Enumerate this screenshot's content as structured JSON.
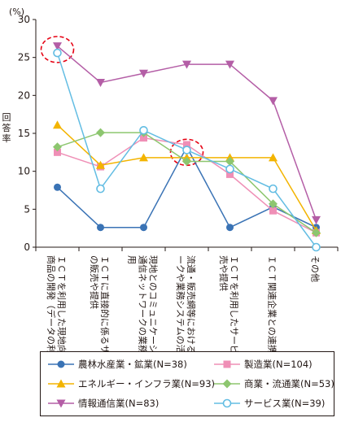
{
  "chart_data": {
    "type": "line",
    "unit": "(%)",
    "ylabel": "回答率",
    "ylim": [
      0,
      30
    ],
    "yticks": [
      0,
      5,
      10,
      15,
      20,
      25,
      30
    ],
    "categories": [
      "ＩＣＴを利用した現地向けサービス・商品の開発（データの利活用等）",
      "ＩＣＴに直接的に係るサービス・商品の販売や提供",
      "現地とのコミュニケーションにおける通信ネットワークの業務システムの活用",
      "流通・販売網等における通信ネットワークや業務システムの活用",
      "ＩＣＴを利用したサービス・商品の販売や提供",
      "ＩＣＴ関連企業との連携・協業",
      "その他"
    ],
    "series": [
      {
        "name": "農林水産業・鉱業(N=38)",
        "color": "#3a73b5",
        "marker": "circle",
        "values": [
          7.9,
          2.6,
          2.6,
          13.2,
          2.6,
          5.3,
          2.6
        ]
      },
      {
        "name": "製造業(N=104)",
        "color": "#ef8fb6",
        "marker": "square",
        "values": [
          12.5,
          10.6,
          14.4,
          13.5,
          9.6,
          4.8,
          1.9
        ]
      },
      {
        "name": "エネルギー・インフラ業(N=93)",
        "color": "#f3b400",
        "marker": "triangle",
        "values": [
          16.1,
          10.8,
          11.8,
          11.8,
          11.8,
          11.8,
          2.2
        ]
      },
      {
        "name": "商業・流通業(N=53)",
        "color": "#8dc66f",
        "marker": "diamond",
        "values": [
          13.2,
          15.1,
          15.1,
          11.3,
          11.3,
          5.7,
          1.9
        ]
      },
      {
        "name": "情報通信業(N=83)",
        "color": "#b45ea6",
        "marker": "triangle-down",
        "values": [
          26.5,
          21.7,
          22.9,
          24.1,
          24.1,
          19.3,
          3.6
        ]
      },
      {
        "name": "サービス業(N=39)",
        "color": "#63bde3",
        "marker": "hollow-circle",
        "values": [
          25.6,
          7.7,
          15.4,
          12.8,
          10.3,
          7.7,
          0.0
        ]
      }
    ],
    "highlights": [
      {
        "category_index": 0,
        "color": "#e60012"
      },
      {
        "category_index": 3,
        "color": "#e60012"
      }
    ]
  }
}
